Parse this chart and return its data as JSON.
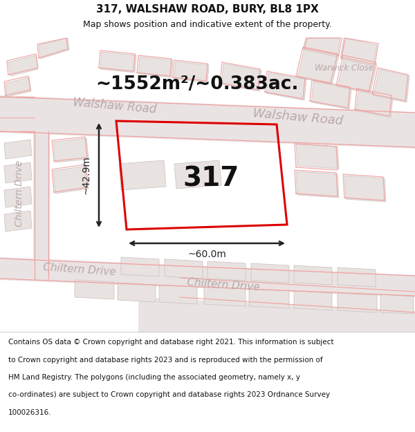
{
  "title": "317, WALSHAW ROAD, BURY, BL8 1PX",
  "subtitle": "Map shows position and indicative extent of the property.",
  "footer_lines": [
    "Contains OS data © Crown copyright and database right 2021. This information is subject",
    "to Crown copyright and database rights 2023 and is reproduced with the permission of",
    "HM Land Registry. The polygons (including the associated geometry, namely x, y",
    "co-ordinates) are subject to Crown copyright and database rights 2023 Ordnance Survey",
    "100026316."
  ],
  "area_label": "~1552m²/~0.383ac.",
  "width_label": "~60.0m",
  "height_label": "~42.9m",
  "property_number": "317",
  "bg_color": "#f2efef",
  "property_outline_color": "#dd0000",
  "dimension_color": "#222222",
  "title_color": "#111111",
  "road_label_color": "#b8a8a8",
  "building_fill": "#e8e2e0",
  "building_edge": "#c8bfbd",
  "road_band_color": "#eae3e3",
  "thin_road_color": "#f0a0a0"
}
